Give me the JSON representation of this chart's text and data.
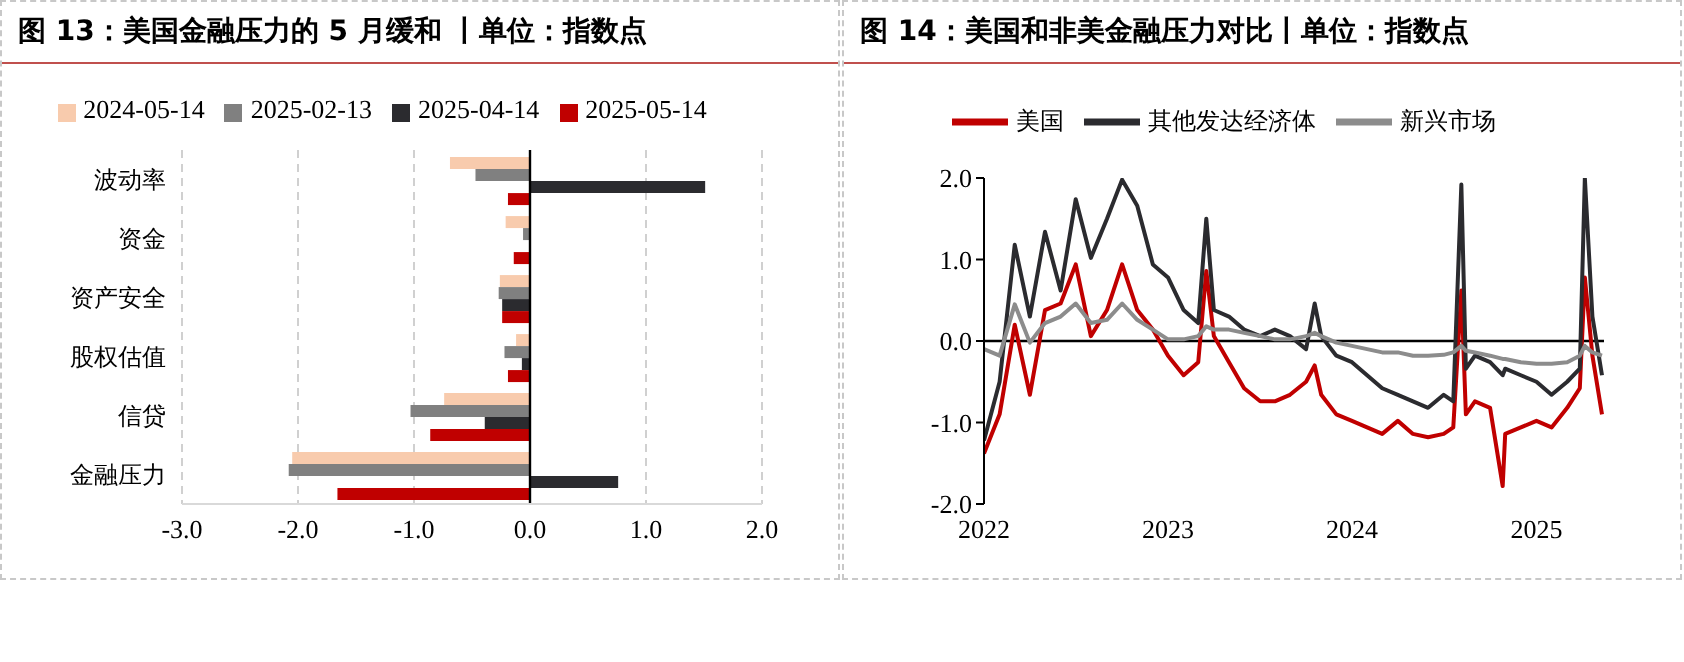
{
  "chart_data": [
    {
      "type": "bar",
      "orientation": "horizontal",
      "title": "图 13：美国金融压力的 5 月缓和 丨单位：指数点",
      "categories": [
        "波动率",
        "资金",
        "资产安全",
        "股权估值",
        "信贷",
        "金融压力"
      ],
      "series": [
        {
          "name": "2024-05-14",
          "color": "#f8cbad",
          "values": [
            -0.69,
            -0.21,
            -0.26,
            -0.12,
            -0.74,
            -2.05
          ]
        },
        {
          "name": "2025-02-13",
          "color": "#808080",
          "values": [
            -0.47,
            -0.06,
            -0.27,
            -0.22,
            -1.03,
            -2.08
          ]
        },
        {
          "name": "2025-04-14",
          "color": "#2b2b2f",
          "values": [
            1.51,
            null,
            -0.24,
            -0.07,
            -0.39,
            0.76
          ]
        },
        {
          "name": "2025-05-14",
          "color": "#c00000",
          "values": [
            -0.19,
            -0.14,
            -0.24,
            -0.19,
            -0.86,
            -1.66
          ]
        }
      ],
      "xlim": [
        -3,
        2
      ],
      "xticks": [
        {
          "value": -3,
          "label": "-3.0"
        },
        {
          "value": -2,
          "label": "-2.0"
        },
        {
          "value": -1,
          "label": "-1.0"
        },
        {
          "value": 0,
          "label": "0.0"
        },
        {
          "value": 1,
          "label": "1.0"
        },
        {
          "value": 2,
          "label": "2.0"
        }
      ],
      "ref_lines": [
        {
          "axis": "x",
          "value": 0,
          "color": "#000000"
        }
      ],
      "grid": "x",
      "legend": "top"
    },
    {
      "type": "line",
      "title": "图 14：美国和非美金融压力对比丨单位：指数点",
      "x": [
        "2022-01-01",
        "2022-02-01",
        "2022-03-03",
        "2022-04-02",
        "2022-05-02",
        "2022-06-02",
        "2022-07-02",
        "2022-08-01",
        "2022-09-02",
        "2022-10-02",
        "2022-11-01",
        "2022-12-02",
        "2023-01-01",
        "2023-02-01",
        "2023-03-02",
        "2023-03-18",
        "2023-04-02",
        "2023-05-02",
        "2023-06-01",
        "2023-07-03",
        "2023-08-01",
        "2023-08-31",
        "2023-10-02",
        "2023-10-19",
        "2023-11-01",
        "2023-12-01",
        "2024-01-01",
        "2024-01-31",
        "2024-03-01",
        "2024-04-01",
        "2024-05-01",
        "2024-05-31",
        "2024-07-01",
        "2024-07-20",
        "2024-08-05",
        "2024-08-14",
        "2024-09-01",
        "2024-10-01",
        "2024-10-26",
        "2024-10-31",
        "2024-12-01",
        "2025-01-01",
        "2025-01-31",
        "2025-03-03",
        "2025-03-28",
        "2025-04-07",
        "2025-04-22",
        "2025-05-11"
      ],
      "series": [
        {
          "name": "美国",
          "color": "#c00000",
          "values": [
            -1.38,
            -0.9,
            0.2,
            -0.66,
            0.38,
            0.46,
            0.94,
            0.06,
            0.38,
            0.94,
            0.38,
            0.14,
            -0.18,
            -0.42,
            -0.26,
            0.86,
            0.06,
            -0.26,
            -0.58,
            -0.74,
            -0.74,
            -0.66,
            -0.5,
            -0.3,
            -0.66,
            -0.9,
            -0.98,
            -1.06,
            -1.14,
            -0.98,
            -1.14,
            -1.18,
            -1.14,
            -1.06,
            0.62,
            -0.9,
            -0.74,
            -0.82,
            -1.78,
            -1.14,
            -1.06,
            -0.98,
            -1.06,
            -0.82,
            -0.58,
            0.78,
            -0.18,
            -0.9
          ]
        },
        {
          "name": "其他发达经济体",
          "color": "#2b2b2f",
          "values": [
            -1.22,
            -0.5,
            1.18,
            0.3,
            1.34,
            0.62,
            1.74,
            1.02,
            1.5,
            1.98,
            1.66,
            0.94,
            0.78,
            0.38,
            0.22,
            1.5,
            0.38,
            0.3,
            0.14,
            0.06,
            0.14,
            0.06,
            -0.1,
            0.46,
            0.06,
            -0.18,
            -0.26,
            -0.42,
            -0.58,
            -0.66,
            -0.74,
            -0.82,
            -0.66,
            -0.74,
            1.92,
            -0.34,
            -0.18,
            -0.26,
            -0.42,
            -0.34,
            -0.42,
            -0.5,
            -0.66,
            -0.5,
            -0.34,
            2.0,
            0.3,
            -0.42
          ]
        },
        {
          "name": "新兴市场",
          "color": "#8c8c8c",
          "values": [
            -0.1,
            -0.18,
            0.45,
            -0.02,
            0.22,
            0.3,
            0.46,
            0.22,
            0.26,
            0.46,
            0.26,
            0.14,
            0.02,
            0.02,
            0.06,
            0.18,
            0.14,
            0.14,
            0.1,
            0.06,
            0.02,
            0.02,
            0.06,
            0.1,
            0.06,
            -0.02,
            -0.06,
            -0.1,
            -0.14,
            -0.14,
            -0.18,
            -0.18,
            -0.17,
            -0.14,
            -0.06,
            -0.12,
            -0.14,
            -0.18,
            -0.22,
            -0.22,
            -0.26,
            -0.28,
            -0.28,
            -0.26,
            -0.18,
            -0.06,
            -0.14,
            -0.18
          ]
        }
      ],
      "xlim": [
        "2022-01-01",
        "2025-05-15"
      ],
      "xticks": [
        {
          "value": "2022-01-01",
          "label": "2022"
        },
        {
          "value": "2023-01-01",
          "label": "2023"
        },
        {
          "value": "2024-01-01",
          "label": "2024"
        },
        {
          "value": "2025-01-01",
          "label": "2025"
        }
      ],
      "ylim": [
        -2,
        2
      ],
      "yticks": [
        {
          "value": -2,
          "label": "-2.0"
        },
        {
          "value": -1,
          "label": "-1.0"
        },
        {
          "value": 0,
          "label": "0.0"
        },
        {
          "value": 1,
          "label": "1.0"
        },
        {
          "value": 2,
          "label": "2.0"
        }
      ],
      "ref_lines": [
        {
          "axis": "y",
          "value": 0,
          "color": "#000000"
        }
      ],
      "legend": "top"
    }
  ]
}
